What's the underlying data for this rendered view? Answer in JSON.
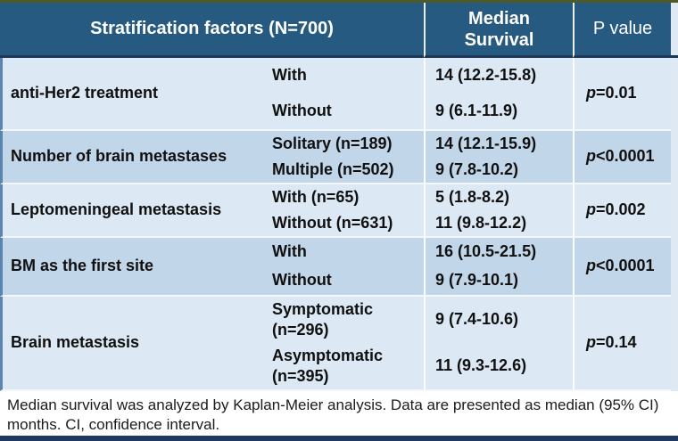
{
  "table": {
    "header": {
      "stratification": "Stratification factors (N=700)",
      "median_line1": "Median",
      "median_line2": "Survival",
      "p_value": "P value"
    },
    "rows": [
      {
        "factor": "anti-Her2 treatment",
        "subs": [
          "With",
          "Without"
        ],
        "medians": [
          "14 (12.2-15.8)",
          "9 (6.1-11.9)"
        ],
        "p_symbol": "p",
        "p_rest": "=0.01"
      },
      {
        "factor": "Number of brain metastases",
        "subs": [
          "Solitary (n=189)",
          "Multiple (n=502)"
        ],
        "medians": [
          "14 (12.1-15.9)",
          "9 (7.8-10.2)"
        ],
        "p_symbol": "p",
        "p_rest": "<0.0001"
      },
      {
        "factor": "Leptomeningeal metastasis",
        "subs": [
          "With (n=65)",
          "Without (n=631)"
        ],
        "medians": [
          "5 (1.8-8.2)",
          "11 (9.8-12.2)"
        ],
        "p_symbol": "p",
        "p_rest": "=0.002"
      },
      {
        "factor": "BM as the first site",
        "subs": [
          "With",
          "Without"
        ],
        "medians": [
          "16 (10.5-21.5)",
          "9 (7.9-10.1)"
        ],
        "p_symbol": "p",
        "p_rest": "<0.0001"
      },
      {
        "factor": "Brain metastasis",
        "subs": [
          "Symptomatic (n=296)",
          "Asymptomatic (n=395)"
        ],
        "medians": [
          "9 (7.4-10.6)",
          "11 (9.3-12.6)"
        ],
        "p_symbol": "p",
        "p_rest": "=0.14"
      }
    ]
  },
  "footer": {
    "line1": "Median survival was analyzed by Kaplan-Meier analysis.  Data are presented as median (95% CI)",
    "line2": "months. CI, confidence interval."
  },
  "colors": {
    "header_bg": "#275A80",
    "header_sep": "#ECEEDE",
    "header_underline": "#1C3757",
    "row_light": "#DCE9F5",
    "row_dark": "#C2D6EA",
    "row_sep": "#F2F7FB",
    "col_sep": "#FBFDFF",
    "left_strip": "#5B84B1",
    "edge_strip": "#DFE9F4",
    "top_edge": "#4D5A27",
    "bottom_edge": "#1F3864",
    "text_dark": "#101010",
    "text_light": "#FFFFFF",
    "footer_text": "#1B1B1B"
  }
}
